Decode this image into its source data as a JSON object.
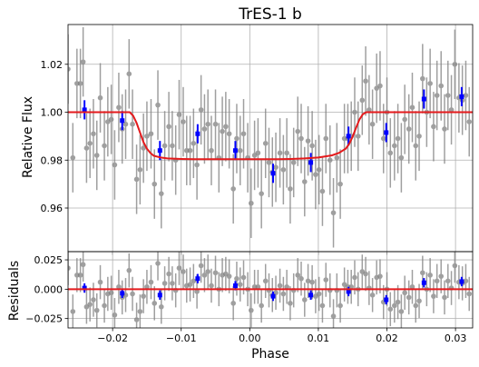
{
  "chart_data": [
    {
      "type": "scatter",
      "title": "TrES-1 b",
      "xlabel": "",
      "ylabel": "Relative Flux",
      "xlim": [
        -0.0265,
        0.0325
      ],
      "ylim": [
        0.9418,
        1.0366
      ],
      "xticks": [
        -0.02,
        -0.01,
        0.0,
        0.01,
        0.02,
        0.03
      ],
      "yticks": [
        0.96,
        0.98,
        1.0,
        1.02
      ],
      "ytick_labels": [
        "0.96",
        "0.98",
        "1.00",
        "1.02"
      ],
      "grid": true,
      "colors": {
        "raw": "#808080",
        "binned": "#0000ff",
        "model": "#e41a1c"
      },
      "series": [
        {
          "type": "errorbar",
          "color": "#808080",
          "x": [
            -0.0265,
            -0.0258,
            -0.0252,
            -0.0247,
            -0.0243,
            -0.0238,
            -0.0233,
            -0.0228,
            -0.0223,
            -0.0218,
            -0.0212,
            -0.0207,
            -0.0202,
            -0.0197,
            -0.0191,
            -0.0186,
            -0.0181,
            -0.0176,
            -0.0171,
            -0.0165,
            -0.016,
            -0.0155,
            -0.015,
            -0.0144,
            -0.0139,
            -0.0134,
            -0.0129,
            -0.0124,
            -0.0118,
            -0.0113,
            -0.0108,
            -0.0103,
            -0.0097,
            -0.0092,
            -0.0087,
            -0.0082,
            -0.0077,
            -0.0071,
            -0.0066,
            -0.0061,
            -0.0056,
            -0.005,
            -0.0045,
            -0.004,
            -0.0035,
            -0.003,
            -0.0024,
            -0.0019,
            -0.0014,
            -0.0009,
            -0.0003,
            0.0002,
            0.0007,
            0.0012,
            0.0017,
            0.0023,
            0.0028,
            0.0033,
            0.0038,
            0.0044,
            0.0049,
            0.0054,
            0.0059,
            0.0064,
            0.007,
            0.0075,
            0.008,
            0.0085,
            0.0091,
            0.0096,
            0.0101,
            0.0106,
            0.0111,
            0.0117,
            0.0122,
            0.0127,
            0.0132,
            0.0138,
            0.0143,
            0.0148,
            0.0153,
            0.0158,
            0.0164,
            0.0169,
            0.0174,
            0.0179,
            0.0185,
            0.019,
            0.0195,
            0.02,
            0.0205,
            0.0211,
            0.0216,
            0.0221,
            0.0226,
            0.0232,
            0.0237,
            0.0242,
            0.0247,
            0.0252,
            0.0258,
            0.0263,
            0.0268,
            0.0273,
            0.0279,
            0.0284,
            0.0289,
            0.0294,
            0.0299,
            0.0305,
            0.031,
            0.0315,
            0.032
          ],
          "y": [
            1.018,
            0.981,
            1.012,
            1.012,
            1.021,
            0.985,
            0.987,
            0.991,
            0.982,
            1.006,
            0.986,
            0.996,
            0.997,
            0.978,
            1.002,
            0.993,
            0.995,
            1.016,
            0.995,
            0.972,
            0.976,
            0.985,
            0.99,
            0.991,
            0.97,
            1.003,
            0.966,
            0.986,
            0.994,
            0.986,
            0.98,
            0.999,
            0.996,
            0.984,
            0.984,
            0.987,
            0.978,
            1.001,
            0.993,
            0.995,
            0.984,
            0.995,
            0.981,
            0.992,
            0.994,
            0.991,
            0.968,
            0.989,
            0.984,
            0.991,
            0.981,
            0.962,
            0.982,
            0.983,
            0.966,
            0.987,
            0.979,
            0.975,
            0.977,
            0.983,
            0.976,
            0.983,
            0.968,
            0.979,
            0.992,
            0.989,
            0.971,
            0.988,
            0.986,
            0.974,
            0.976,
            0.967,
            0.989,
            0.98,
            0.958,
            0.981,
            0.97,
            0.989,
            0.989,
            0.99,
            1.0,
            0.99,
            1.005,
            1.013,
            1.001,
            0.995,
            1.01,
            1.011,
            0.989,
            1.0,
            0.983,
            0.986,
            0.989,
            0.981,
            0.997,
            0.993,
            1.002,
            0.986,
            0.99,
            1.014,
            1.0,
            1.012,
            0.994,
            1.007,
            1.011,
            0.993,
            1.007,
            1.001,
            1.02,
            1.006,
            1.005,
            1.007,
            0.996
          ],
          "yerr": [
            0.0145,
            0.0145,
            0.0145,
            0.0145,
            0.0145,
            0.0145,
            0.0145,
            0.0145,
            0.0145,
            0.0145,
            0.0145,
            0.0145,
            0.0145,
            0.0145,
            0.0145,
            0.0145,
            0.0145,
            0.0145,
            0.0145,
            0.0145,
            0.0145,
            0.0145,
            0.0145,
            0.0145,
            0.0145,
            0.0145,
            0.0145,
            0.0145,
            0.0145,
            0.0145,
            0.0145,
            0.0145,
            0.0145,
            0.0145,
            0.0145,
            0.0145,
            0.0145,
            0.0145,
            0.0145,
            0.0145,
            0.0145,
            0.0145,
            0.0145,
            0.0145,
            0.0145,
            0.0145,
            0.0145,
            0.0145,
            0.0145,
            0.0145,
            0.0145,
            0.0145,
            0.0145,
            0.0145,
            0.0145,
            0.0145,
            0.0145,
            0.0145,
            0.0145,
            0.0145,
            0.0145,
            0.0145,
            0.0145,
            0.0145,
            0.0145,
            0.0145,
            0.0145,
            0.0145,
            0.0145,
            0.0145,
            0.0145,
            0.0145,
            0.0145,
            0.0145,
            0.0145,
            0.0145,
            0.0145,
            0.0145,
            0.0145,
            0.0145,
            0.0145,
            0.0145,
            0.0145,
            0.0145,
            0.0145,
            0.0145,
            0.0145,
            0.0145,
            0.0145,
            0.0145,
            0.0145,
            0.0145,
            0.0145,
            0.0145,
            0.0145,
            0.0145,
            0.0145,
            0.0145,
            0.0145,
            0.0145,
            0.0145,
            0.0145,
            0.0145,
            0.0145,
            0.0145,
            0.0145,
            0.0145,
            0.0145,
            0.0145,
            0.0145,
            0.0145,
            0.0145,
            0.0145
          ]
        },
        {
          "type": "errorbar",
          "color": "#0000ff",
          "x": [
            -0.0241,
            -0.0186,
            -0.0131,
            -0.0076,
            -0.0021,
            0.0034,
            0.0089,
            0.0144,
            0.0199,
            0.0254,
            0.0309
          ],
          "y": [
            1.001,
            0.9965,
            0.984,
            0.991,
            0.984,
            0.9745,
            0.979,
            0.99,
            0.9915,
            1.0055,
            1.0065
          ],
          "yerr": [
            0.004,
            0.004,
            0.004,
            0.004,
            0.004,
            0.004,
            0.004,
            0.004,
            0.004,
            0.004,
            0.004
          ]
        },
        {
          "type": "line",
          "color": "#e41a1c",
          "x": [
            -0.0265,
            -0.0175,
            -0.017,
            -0.0165,
            -0.016,
            -0.0155,
            -0.015,
            -0.0145,
            -0.014,
            -0.013,
            -0.012,
            -0.01,
            -0.008,
            -0.006,
            -0.004,
            -0.002,
            0.0,
            0.002,
            0.004,
            0.006,
            0.008,
            0.01,
            0.012,
            0.013,
            0.014,
            0.0145,
            0.015,
            0.0155,
            0.016,
            0.0165,
            0.017,
            0.0175,
            0.018,
            0.0325
          ],
          "y": [
            1.0,
            1.0,
            0.9985,
            0.9955,
            0.9915,
            0.9875,
            0.9848,
            0.983,
            0.9818,
            0.9811,
            0.9807,
            0.9805,
            0.9804,
            0.9804,
            0.9804,
            0.9804,
            0.9804,
            0.9804,
            0.9804,
            0.9805,
            0.9807,
            0.9811,
            0.982,
            0.983,
            0.9848,
            0.9868,
            0.9898,
            0.9935,
            0.997,
            0.9992,
            1.0,
            1.0,
            1.0,
            1.0
          ]
        }
      ]
    },
    {
      "type": "scatter",
      "xlabel": "Phase",
      "ylabel": "Residuals",
      "xlim": [
        -0.0265,
        0.0325
      ],
      "ylim": [
        -0.033,
        0.032
      ],
      "xticks": [
        -0.02,
        -0.01,
        0.0,
        0.01,
        0.02,
        0.03
      ],
      "xtick_labels": [
        "−0.02",
        "−0.01",
        "0.00",
        "0.01",
        "0.02",
        "0.03"
      ],
      "yticks": [
        -0.025,
        0.0,
        0.025
      ],
      "ytick_labels": [
        "−0.025",
        "0.000",
        "0.025"
      ],
      "grid": true,
      "series": [
        {
          "type": "errorbar",
          "color": "#808080",
          "x": [
            -0.0265,
            -0.0258,
            -0.0252,
            -0.0247,
            -0.0243,
            -0.0238,
            -0.0233,
            -0.0228,
            -0.0223,
            -0.0218,
            -0.0212,
            -0.0207,
            -0.0202,
            -0.0197,
            -0.0191,
            -0.0186,
            -0.0181,
            -0.0176,
            -0.0171,
            -0.0165,
            -0.016,
            -0.0155,
            -0.015,
            -0.0144,
            -0.0139,
            -0.0134,
            -0.0129,
            -0.0124,
            -0.0118,
            -0.0113,
            -0.0108,
            -0.0103,
            -0.0097,
            -0.0092,
            -0.0087,
            -0.0082,
            -0.0077,
            -0.0071,
            -0.0066,
            -0.0061,
            -0.0056,
            -0.005,
            -0.0045,
            -0.004,
            -0.0035,
            -0.003,
            -0.0024,
            -0.0019,
            -0.0014,
            -0.0009,
            -0.0003,
            0.0002,
            0.0007,
            0.0012,
            0.0017,
            0.0023,
            0.0028,
            0.0033,
            0.0038,
            0.0044,
            0.0049,
            0.0054,
            0.0059,
            0.0064,
            0.007,
            0.0075,
            0.008,
            0.0085,
            0.0091,
            0.0096,
            0.0101,
            0.0106,
            0.0111,
            0.0117,
            0.0122,
            0.0127,
            0.0132,
            0.0138,
            0.0143,
            0.0148,
            0.0153,
            0.0158,
            0.0164,
            0.0169,
            0.0174,
            0.0179,
            0.0185,
            0.019,
            0.0195,
            0.02,
            0.0205,
            0.0211,
            0.0216,
            0.0221,
            0.0226,
            0.0232,
            0.0237,
            0.0242,
            0.0247,
            0.0252,
            0.0258,
            0.0263,
            0.0268,
            0.0273,
            0.0279,
            0.0284,
            0.0289,
            0.0294,
            0.0299,
            0.0305,
            0.031,
            0.0315,
            0.032
          ],
          "y": [
            0.018,
            -0.019,
            0.012,
            0.012,
            0.021,
            -0.015,
            -0.013,
            -0.009,
            -0.018,
            0.006,
            -0.014,
            -0.004,
            -0.003,
            -0.022,
            0.002,
            -0.007,
            -0.005,
            0.016,
            -0.004,
            -0.026,
            -0.019,
            -0.006,
            0.002,
            0.006,
            -0.012,
            0.022,
            -0.015,
            0.005,
            0.013,
            0.005,
            -0.001,
            0.018,
            0.015,
            0.003,
            0.004,
            0.007,
            -0.002,
            0.02,
            0.012,
            0.015,
            0.003,
            0.014,
            0.0,
            0.012,
            0.013,
            0.011,
            -0.012,
            0.009,
            0.004,
            0.01,
            0.0,
            -0.018,
            0.002,
            0.002,
            -0.014,
            0.007,
            -0.001,
            -0.005,
            -0.003,
            0.003,
            -0.004,
            0.002,
            -0.012,
            -0.001,
            0.012,
            0.009,
            -0.009,
            0.007,
            0.006,
            -0.006,
            -0.004,
            -0.014,
            0.008,
            -0.001,
            -0.023,
            -0.001,
            -0.014,
            0.004,
            0.002,
            0.002,
            0.01,
            0.0,
            0.015,
            0.013,
            0.001,
            -0.005,
            0.01,
            0.011,
            -0.011,
            0.0,
            -0.017,
            -0.014,
            -0.011,
            -0.019,
            -0.003,
            -0.007,
            0.002,
            -0.014,
            -0.01,
            0.014,
            0.0,
            0.012,
            -0.006,
            0.007,
            0.011,
            -0.007,
            0.007,
            0.001,
            0.02,
            0.006,
            0.005,
            0.007,
            -0.004
          ],
          "yerr": [
            0.0145,
            0.0145,
            0.0145,
            0.0145,
            0.0145,
            0.0145,
            0.0145,
            0.0145,
            0.0145,
            0.0145,
            0.0145,
            0.0145,
            0.0145,
            0.0145,
            0.0145,
            0.0145,
            0.0145,
            0.0145,
            0.0145,
            0.0145,
            0.0145,
            0.0145,
            0.0145,
            0.0145,
            0.0145,
            0.0145,
            0.0145,
            0.0145,
            0.0145,
            0.0145,
            0.0145,
            0.0145,
            0.0145,
            0.0145,
            0.0145,
            0.0145,
            0.0145,
            0.0145,
            0.0145,
            0.0145,
            0.0145,
            0.0145,
            0.0145,
            0.0145,
            0.0145,
            0.0145,
            0.0145,
            0.0145,
            0.0145,
            0.0145,
            0.0145,
            0.0145,
            0.0145,
            0.0145,
            0.0145,
            0.0145,
            0.0145,
            0.0145,
            0.0145,
            0.0145,
            0.0145,
            0.0145,
            0.0145,
            0.0145,
            0.0145,
            0.0145,
            0.0145,
            0.0145,
            0.0145,
            0.0145,
            0.0145,
            0.0145,
            0.0145,
            0.0145,
            0.0145,
            0.0145,
            0.0145,
            0.0145,
            0.0145,
            0.0145,
            0.0145,
            0.0145,
            0.0145,
            0.0145,
            0.0145,
            0.0145,
            0.0145,
            0.0145,
            0.0145,
            0.0145,
            0.0145,
            0.0145,
            0.0145,
            0.0145,
            0.0145,
            0.0145,
            0.0145,
            0.0145,
            0.0145,
            0.0145,
            0.0145,
            0.0145,
            0.0145,
            0.0145,
            0.0145,
            0.0145,
            0.0145,
            0.0145,
            0.0145,
            0.0145,
            0.0145,
            0.0145,
            0.0145
          ]
        },
        {
          "type": "errorbar",
          "color": "#0000ff",
          "x": [
            -0.0241,
            -0.0186,
            -0.0131,
            -0.0076,
            -0.0021,
            0.0034,
            0.0089,
            0.0144,
            0.0199,
            0.0254,
            0.0309
          ],
          "y": [
            0.001,
            -0.0035,
            -0.005,
            0.009,
            0.003,
            -0.006,
            -0.005,
            -0.002,
            -0.009,
            0.0055,
            0.0065
          ],
          "yerr": [
            0.004,
            0.004,
            0.004,
            0.004,
            0.004,
            0.004,
            0.004,
            0.004,
            0.004,
            0.004,
            0.004
          ]
        },
        {
          "type": "line",
          "color": "#e41a1c",
          "x": [
            -0.0265,
            0.0325
          ],
          "y": [
            0.0,
            0.0
          ]
        }
      ]
    }
  ]
}
